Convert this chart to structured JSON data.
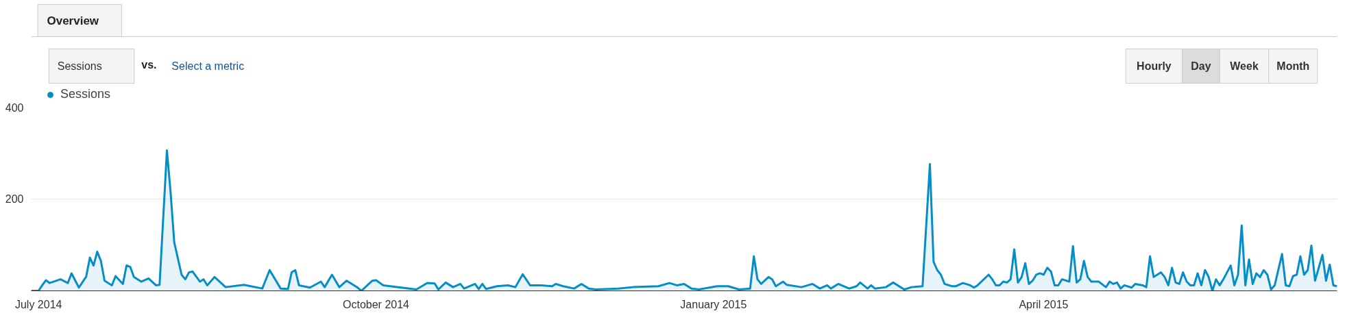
{
  "chart_data": {
    "type": "area",
    "annotations": [
      "Overview",
      "Sessions",
      "vs.",
      "Select a metric",
      "Hourly",
      "Day",
      "Week",
      "Month"
    ],
    "x": [
      "2014-06-29",
      "2014-07-01",
      "2014-07-02",
      "2014-07-03",
      "2014-07-04",
      "2014-07-07",
      "2014-07-09",
      "2014-07-10",
      "2014-07-12",
      "2014-07-14",
      "2014-07-15",
      "2014-07-16",
      "2014-07-17",
      "2014-07-18",
      "2014-07-19",
      "2014-07-21",
      "2014-07-22",
      "2014-07-24",
      "2014-07-25",
      "2014-07-26",
      "2014-07-27",
      "2014-07-29",
      "2014-07-31",
      "2014-08-02",
      "2014-08-03",
      "2014-08-05",
      "2014-08-06",
      "2014-08-07",
      "2014-08-08",
      "2014-08-09",
      "2014-08-10",
      "2014-08-11",
      "2014-08-12",
      "2014-08-14",
      "2014-08-15",
      "2014-08-16",
      "2014-08-18",
      "2014-08-21",
      "2014-08-26",
      "2014-08-31",
      "2014-09-02",
      "2014-09-05",
      "2014-09-07",
      "2014-09-08",
      "2014-09-09",
      "2014-09-10",
      "2014-09-13",
      "2014-09-16",
      "2014-09-17",
      "2014-09-19",
      "2014-09-21",
      "2014-09-23",
      "2014-09-26",
      "2014-09-27",
      "2014-09-30",
      "2014-10-01",
      "2014-10-03",
      "2014-10-09",
      "2014-10-12",
      "2014-10-15",
      "2014-10-17",
      "2014-10-18",
      "2014-10-20",
      "2014-10-22",
      "2014-10-24",
      "2014-10-25",
      "2014-10-28",
      "2014-10-29",
      "2014-10-30",
      "2014-10-31",
      "2014-11-03",
      "2014-11-06",
      "2014-11-08",
      "2014-11-10",
      "2014-11-12",
      "2014-11-15",
      "2014-11-18",
      "2014-11-19",
      "2014-11-21",
      "2014-11-24",
      "2014-11-26",
      "2014-11-28",
      "2014-11-30",
      "2014-12-06",
      "2014-12-10",
      "2014-12-17",
      "2014-12-20",
      "2014-12-22",
      "2014-12-24",
      "2014-12-26",
      "2014-12-28",
      "2015-01-02",
      "2015-01-05",
      "2015-01-08",
      "2015-01-11",
      "2015-01-12",
      "2015-01-13",
      "2015-01-14",
      "2015-01-16",
      "2015-01-17",
      "2015-01-18",
      "2015-01-20",
      "2015-01-21",
      "2015-01-25",
      "2015-01-28",
      "2015-01-30",
      "2015-02-01",
      "2015-02-02",
      "2015-02-04",
      "2015-02-07",
      "2015-02-09",
      "2015-02-10",
      "2015-02-12",
      "2015-02-13",
      "2015-02-14",
      "2015-02-17",
      "2015-02-19",
      "2015-02-22",
      "2015-02-24",
      "2015-02-27",
      "2015-03-01",
      "2015-03-02",
      "2015-03-03",
      "2015-03-04",
      "2015-03-05",
      "2015-03-07",
      "2015-03-08",
      "2015-03-10",
      "2015-03-12",
      "2015-03-13",
      "2015-03-14",
      "2015-03-17",
      "2015-03-18",
      "2015-03-19",
      "2015-03-20",
      "2015-03-21",
      "2015-03-22",
      "2015-03-23",
      "2015-03-24",
      "2015-03-25",
      "2015-03-26",
      "2015-03-27",
      "2015-03-28",
      "2015-03-29",
      "2015-03-30",
      "2015-03-31",
      "2015-04-01",
      "2015-04-02",
      "2015-04-03",
      "2015-04-04",
      "2015-04-05",
      "2015-04-06",
      "2015-04-08",
      "2015-04-09",
      "2015-04-10",
      "2015-04-11",
      "2015-04-12",
      "2015-04-13",
      "2015-04-14",
      "2015-04-16",
      "2015-04-18",
      "2015-04-19",
      "2015-04-20",
      "2015-04-21",
      "2015-04-22",
      "2015-04-23",
      "2015-04-25",
      "2015-04-26",
      "2015-04-28",
      "2015-04-29",
      "2015-04-30",
      "2015-05-01",
      "2015-05-03",
      "2015-05-04",
      "2015-05-05",
      "2015-05-06",
      "2015-05-07",
      "2015-05-08",
      "2015-05-09",
      "2015-05-10",
      "2015-05-11",
      "2015-05-12",
      "2015-05-13",
      "2015-05-14",
      "2015-05-15",
      "2015-05-16",
      "2015-05-17",
      "2015-05-18",
      "2015-05-19",
      "2015-05-20",
      "2015-05-21",
      "2015-05-22",
      "2015-05-23",
      "2015-05-24",
      "2015-05-25",
      "2015-05-26",
      "2015-05-27",
      "2015-05-28",
      "2015-05-29",
      "2015-05-30",
      "2015-05-31",
      "2015-06-01",
      "2015-06-02",
      "2015-06-03",
      "2015-06-05",
      "2015-06-06",
      "2015-06-07",
      "2015-06-08",
      "2015-06-09",
      "2015-06-10",
      "2015-06-11",
      "2015-06-12",
      "2015-06-13",
      "2015-06-14",
      "2015-06-15",
      "2015-06-16",
      "2015-06-17",
      "2015-06-18",
      "2015-06-19",
      "2015-06-20"
    ],
    "series": [
      {
        "name": "Sessions",
        "color": "#058dc7",
        "values": [
          0,
          0,
          12,
          23,
          17,
          25,
          17,
          38,
          7,
          31,
          72,
          55,
          85,
          65,
          22,
          12,
          32,
          15,
          55,
          52,
          30,
          20,
          27,
          12,
          13,
          305,
          214,
          105,
          70,
          35,
          25,
          40,
          42,
          20,
          25,
          12,
          30,
          8,
          13,
          5,
          45,
          5,
          4,
          40,
          45,
          12,
          7,
          20,
          8,
          35,
          8,
          22,
          7,
          0,
          22,
          23,
          12,
          6,
          3,
          17,
          16,
          3,
          18,
          8,
          15,
          5,
          15,
          4,
          15,
          4,
          10,
          12,
          8,
          36,
          12,
          12,
          10,
          15,
          10,
          5,
          15,
          5,
          3,
          5,
          8,
          10,
          17,
          12,
          15,
          5,
          3,
          10,
          10,
          3,
          5,
          75,
          25,
          15,
          30,
          25,
          10,
          20,
          13,
          8,
          15,
          5,
          12,
          5,
          15,
          5,
          10,
          18,
          5,
          12,
          5,
          8,
          18,
          3,
          8,
          10,
          275,
          63,
          45,
          35,
          15,
          10,
          10,
          17,
          12,
          7,
          12,
          35,
          25,
          12,
          12,
          20,
          18,
          25,
          90,
          18,
          30,
          60,
          15,
          22,
          35,
          38,
          35,
          50,
          42,
          12,
          12,
          25,
          20,
          97,
          18,
          25,
          65,
          30,
          20,
          20,
          8,
          20,
          15,
          18,
          5,
          12,
          7,
          15,
          12,
          8,
          75,
          30,
          40,
          30,
          12,
          50,
          18,
          15,
          40,
          20,
          12,
          12,
          38,
          12,
          45,
          30,
          0,
          25,
          12,
          25,
          40,
          55,
          12,
          35,
          142,
          12,
          68,
          15,
          38,
          30,
          45,
          35,
          3,
          12,
          80,
          12,
          10,
          32,
          35,
          75,
          35,
          45,
          98,
          22,
          50,
          78,
          22,
          57,
          12,
          10
        ]
      }
    ],
    "xlim": [
      "2014-06-29",
      "2015-06-20"
    ],
    "xticks": [
      {
        "value": "2014-07-01",
        "label": "July 2014"
      },
      {
        "value": "2014-10-01",
        "label": "October 2014"
      },
      {
        "value": "2015-01-01",
        "label": "January 2015"
      },
      {
        "value": "2015-04-01",
        "label": "April 2015"
      }
    ],
    "ylim": [
      0,
      400
    ],
    "yticks": [
      {
        "value": 0,
        "label": null
      },
      200,
      400
    ],
    "grid": "y",
    "legend": "top left",
    "marker": "none",
    "line_style": "solid"
  }
}
